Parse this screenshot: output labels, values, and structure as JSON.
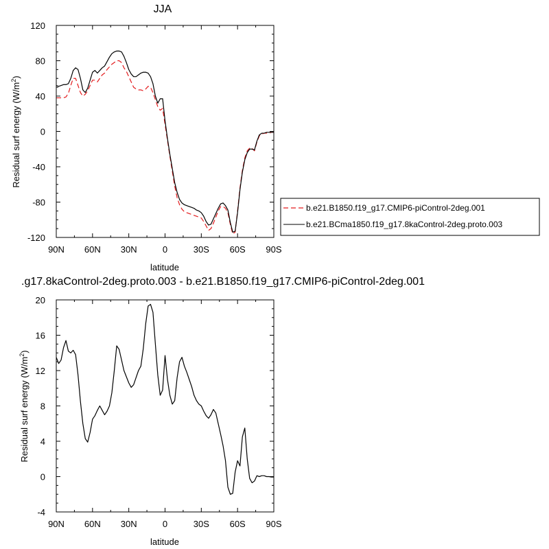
{
  "chart_data": [
    {
      "type": "line",
      "title": "JJA",
      "xlabel": "latitude",
      "ylabel": "Residual surf energy (W/m",
      "ylabel_sup": "2",
      "ylabel_close": ")",
      "xlim": [
        90,
        -90
      ],
      "ylim": [
        -120,
        120
      ],
      "xticks": [
        {
          "value": 90,
          "label": "90N"
        },
        {
          "value": 60,
          "label": "60N"
        },
        {
          "value": 30,
          "label": "30N"
        },
        {
          "value": 0,
          "label": "0"
        },
        {
          "value": -30,
          "label": "30S"
        },
        {
          "value": -60,
          "label": "60S"
        },
        {
          "value": -90,
          "label": "90S"
        }
      ],
      "yticks": [
        {
          "value": 120,
          "label": "120"
        },
        {
          "value": 80,
          "label": "80"
        },
        {
          "value": 40,
          "label": "40"
        },
        {
          "value": 0,
          "label": "0"
        },
        {
          "value": -40,
          "label": "-40"
        },
        {
          "value": -80,
          "label": "-80"
        },
        {
          "value": -120,
          "label": "-120"
        }
      ],
      "legend_position": "right",
      "series": [
        {
          "name": "b.e21.B1850.f19_g17.CMIP6-piControl-2deg.001",
          "color": "#e31a1c",
          "dash": "dashed",
          "x": [
            90,
            88,
            86,
            84,
            82,
            80,
            78,
            76,
            74,
            72,
            70,
            68,
            66,
            64,
            62,
            60,
            58,
            56,
            54,
            52,
            50,
            48,
            46,
            44,
            42,
            40,
            38,
            36,
            34,
            32,
            30,
            28,
            26,
            24,
            22,
            20,
            18,
            16,
            14,
            12,
            10,
            8,
            6,
            4,
            2,
            0,
            -2,
            -4,
            -6,
            -8,
            -10,
            -12,
            -14,
            -16,
            -18,
            -20,
            -22,
            -24,
            -26,
            -28,
            -30,
            -32,
            -34,
            -36,
            -38,
            -40,
            -42,
            -44,
            -46,
            -48,
            -50,
            -52,
            -54,
            -56,
            -58,
            -60,
            -62,
            -64,
            -66,
            -68,
            -70,
            -72,
            -74,
            -76,
            -78,
            -80,
            -82,
            -84,
            -86,
            -88,
            -90
          ],
          "values": [
            38,
            38,
            38,
            38,
            39,
            43,
            52,
            60,
            60,
            52,
            44,
            40,
            42,
            46,
            52,
            58,
            58,
            56,
            60,
            64,
            66,
            70,
            73,
            76,
            78,
            80,
            80,
            78,
            72,
            68,
            62,
            56,
            50,
            48,
            47,
            47,
            46,
            48,
            51,
            50,
            44,
            36,
            28,
            24,
            26,
            8,
            -10,
            -28,
            -45,
            -62,
            -75,
            -83,
            -88,
            -91,
            -92,
            -93,
            -94,
            -95,
            -96,
            -97,
            -98,
            -102,
            -107,
            -112,
            -110,
            -104,
            -97,
            -90,
            -85,
            -85,
            -87,
            -92,
            -105,
            -116,
            -114,
            -90,
            -64,
            -44,
            -30,
            -22,
            -19,
            -19,
            -22,
            -12,
            -5,
            -3,
            -2,
            -2,
            -2,
            -1,
            -1
          ]
        },
        {
          "name": "b.e21.BCma1850.f19_g17.8kaControl-2deg.proto.003",
          "color": "#000000",
          "dash": "solid",
          "x": [
            90,
            88,
            86,
            84,
            82,
            80,
            78,
            76,
            74,
            72,
            70,
            68,
            66,
            64,
            62,
            60,
            58,
            56,
            54,
            52,
            50,
            48,
            46,
            44,
            42,
            40,
            38,
            36,
            34,
            32,
            30,
            28,
            26,
            24,
            22,
            20,
            18,
            16,
            14,
            12,
            10,
            8,
            6,
            4,
            2,
            0,
            -2,
            -4,
            -6,
            -8,
            -10,
            -12,
            -14,
            -16,
            -18,
            -20,
            -22,
            -24,
            -26,
            -28,
            -30,
            -32,
            -34,
            -36,
            -38,
            -40,
            -42,
            -44,
            -46,
            -48,
            -50,
            -52,
            -54,
            -56,
            -58,
            -60,
            -62,
            -64,
            -66,
            -68,
            -70,
            -72,
            -74,
            -76,
            -78,
            -80,
            -82,
            -84,
            -86,
            -88,
            -90
          ],
          "values": [
            52,
            51,
            52,
            53,
            53,
            54,
            60,
            69,
            72,
            70,
            60,
            47,
            44,
            49,
            58,
            67,
            69,
            66,
            69,
            72,
            74,
            79,
            84,
            88,
            90,
            91,
            91,
            90,
            85,
            78,
            70,
            65,
            62,
            62,
            64,
            66,
            67,
            67,
            66,
            62,
            54,
            40,
            32,
            37,
            37,
            12,
            -8,
            -26,
            -42,
            -58,
            -69,
            -77,
            -81,
            -83,
            -84,
            -85,
            -86,
            -87,
            -89,
            -90,
            -92,
            -96,
            -102,
            -106,
            -105,
            -99,
            -93,
            -87,
            -82,
            -81,
            -84,
            -89,
            -103,
            -114,
            -113,
            -92,
            -66,
            -46,
            -32,
            -24,
            -20,
            -20,
            -21,
            -11,
            -4,
            -2,
            -2,
            -1,
            -1,
            -1,
            -1
          ]
        }
      ]
    },
    {
      "type": "line",
      "title": ".g17.8kaControl-2deg.proto.003 - b.e21.B1850.f19_g17.CMIP6-piControl-2deg.001",
      "xlabel": "latitude",
      "ylabel": "Residual surf energy (W/m",
      "ylabel_sup": "2",
      "ylabel_close": ")",
      "xlim": [
        90,
        -90
      ],
      "ylim": [
        -4,
        20
      ],
      "xticks": [
        {
          "value": 90,
          "label": "90N"
        },
        {
          "value": 60,
          "label": "60N"
        },
        {
          "value": 30,
          "label": "30N"
        },
        {
          "value": 0,
          "label": "0"
        },
        {
          "value": -30,
          "label": "30S"
        },
        {
          "value": -60,
          "label": "60S"
        },
        {
          "value": -90,
          "label": "90S"
        }
      ],
      "yticks": [
        {
          "value": 20,
          "label": "20"
        },
        {
          "value": 16,
          "label": "16"
        },
        {
          "value": 12,
          "label": "12"
        },
        {
          "value": 8,
          "label": "8"
        },
        {
          "value": 4,
          "label": "4"
        },
        {
          "value": 0,
          "label": "0"
        },
        {
          "value": -4,
          "label": "-4"
        }
      ],
      "series": [
        {
          "color": "#000000",
          "dash": "solid",
          "x": [
            90,
            88,
            86,
            84,
            82,
            80,
            78,
            76,
            74,
            72,
            70,
            68,
            66,
            64,
            62,
            60,
            58,
            56,
            54,
            52,
            50,
            48,
            46,
            44,
            42,
            40,
            38,
            36,
            34,
            32,
            30,
            28,
            26,
            24,
            22,
            20,
            18,
            16,
            14,
            12,
            10,
            8,
            6,
            4,
            2,
            0,
            -2,
            -4,
            -6,
            -8,
            -10,
            -12,
            -14,
            -16,
            -18,
            -20,
            -22,
            -24,
            -26,
            -28,
            -30,
            -32,
            -34,
            -36,
            -38,
            -40,
            -42,
            -44,
            -46,
            -48,
            -50,
            -52,
            -54,
            -56,
            -58,
            -60,
            -62,
            -64,
            -66,
            -68,
            -70,
            -72,
            -74,
            -76,
            -78,
            -80,
            -82,
            -84,
            -86,
            -88,
            -90
          ],
          "values": [
            13.5,
            12.8,
            13.2,
            14.6,
            15.4,
            14.2,
            14.0,
            14.3,
            13.8,
            11.5,
            8.5,
            6.0,
            4.3,
            3.9,
            5.0,
            6.5,
            6.9,
            7.5,
            8.0,
            7.5,
            7.0,
            7.4,
            8.0,
            9.5,
            12.0,
            14.8,
            14.4,
            13.2,
            12.0,
            11.3,
            10.6,
            10.1,
            10.4,
            11.2,
            12.0,
            12.5,
            14.5,
            17.3,
            19.3,
            19.5,
            18.6,
            15.0,
            11.5,
            9.2,
            9.8,
            13.7,
            11.0,
            9.2,
            8.2,
            8.6,
            11.2,
            13.0,
            13.5,
            12.5,
            11.8,
            11.0,
            10.2,
            9.2,
            8.6,
            8.2,
            8.0,
            7.4,
            6.9,
            6.6,
            7.0,
            7.6,
            7.2,
            6.0,
            4.8,
            3.5,
            1.8,
            -1.2,
            -2.0,
            -1.9,
            0.5,
            1.8,
            1.2,
            4.5,
            5.5,
            2.0,
            -0.2,
            -0.7,
            -0.5,
            0.1,
            0.0,
            0.1,
            0.1,
            0.0,
            0.0,
            -0.05,
            -0.05
          ]
        }
      ]
    }
  ]
}
